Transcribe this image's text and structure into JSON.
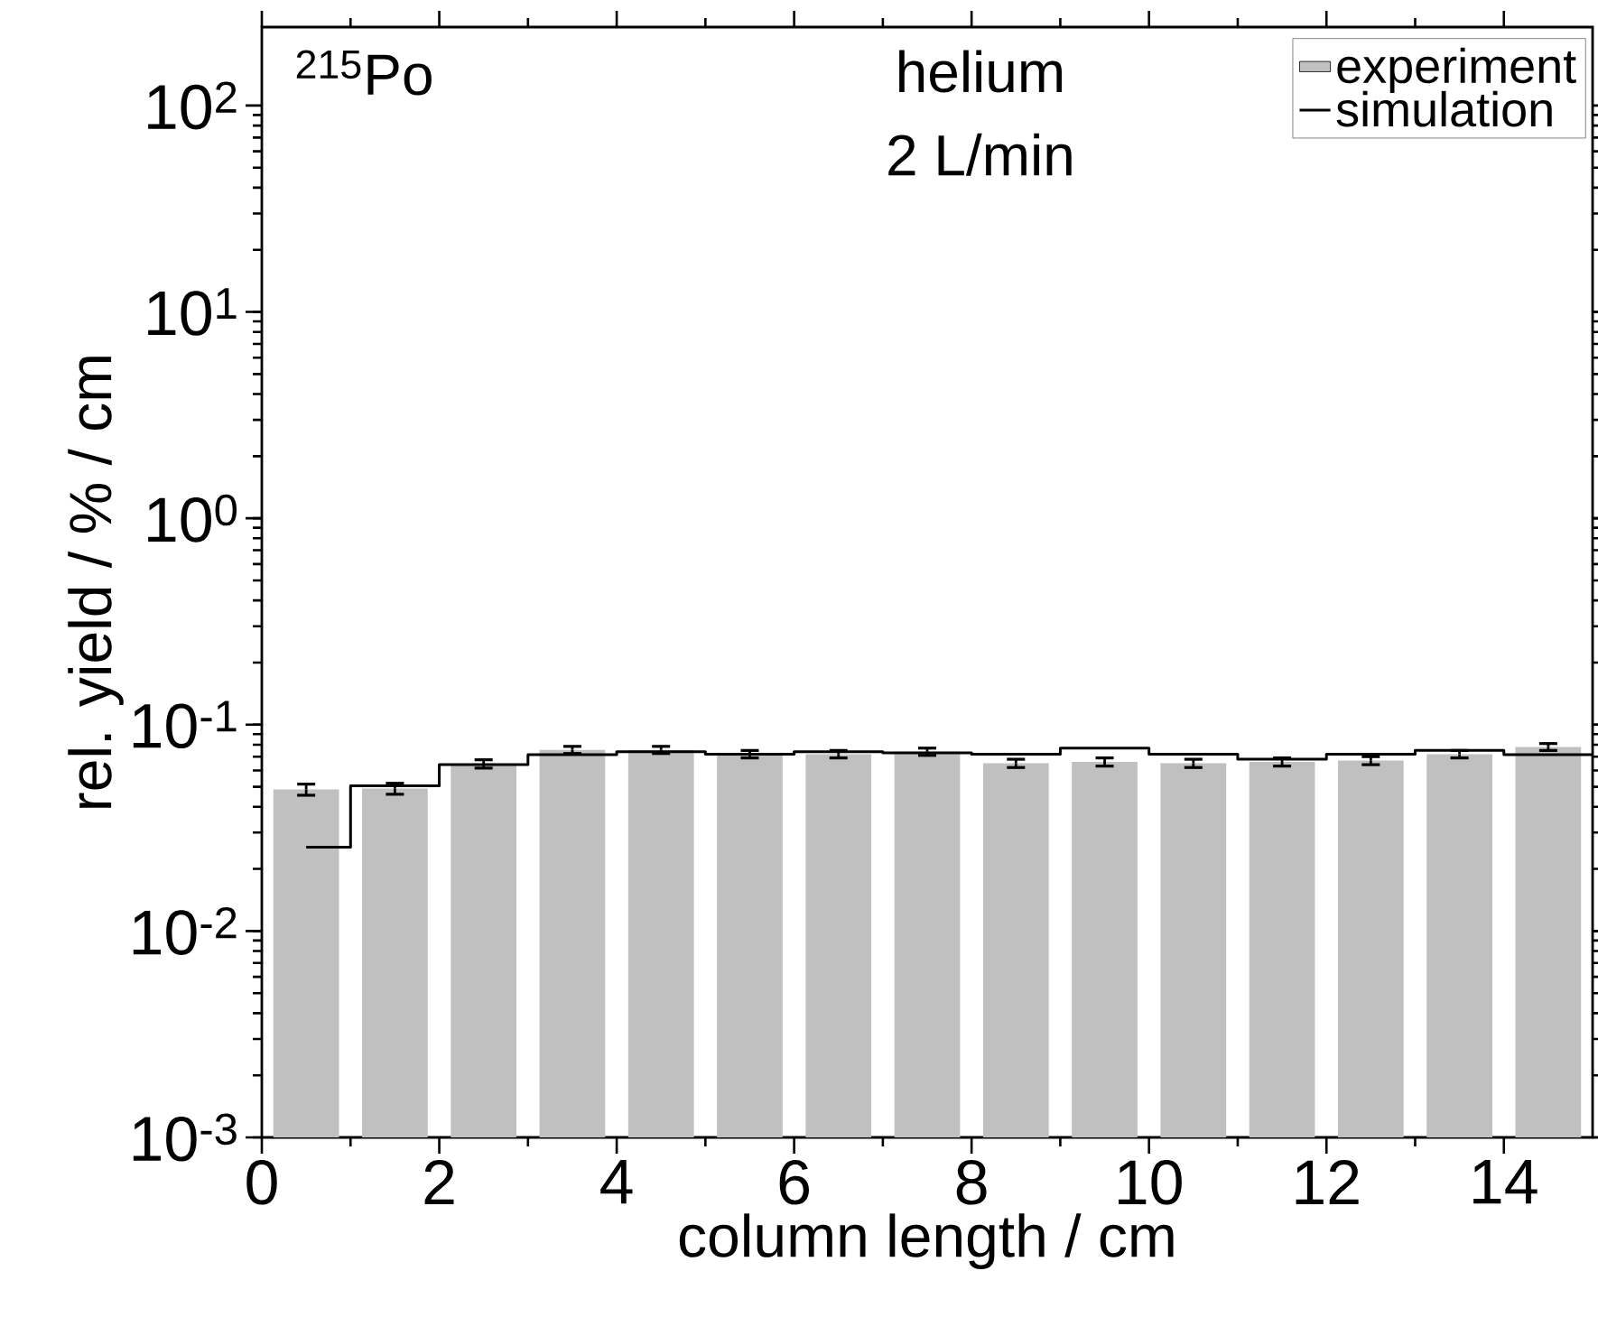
{
  "chart_data": {
    "type": "bar",
    "xlabel": "column length / cm",
    "ylabel": "rel. yield / % / cm",
    "annotations": [
      "$^{215}$Po",
      "helium",
      "2 L/min"
    ],
    "xlim": [
      0,
      15
    ],
    "xticks": [
      0,
      2,
      4,
      6,
      8,
      10,
      12,
      14
    ],
    "ylim": [
      0.001,
      240
    ],
    "yticks": [
      {
        "value": 0.001,
        "label": "10$^{-3}$"
      },
      {
        "value": 0.01,
        "label": "10$^{-2}$"
      },
      {
        "value": 0.1,
        "label": "10$^{-1}$"
      },
      {
        "value": 1,
        "label": "10$^{0}$"
      },
      {
        "value": 10,
        "label": "10$^{1}$"
      },
      {
        "value": 100,
        "label": "10$^{2}$"
      }
    ],
    "log": "y",
    "legend": "top right",
    "series": [
      {
        "name": "experiment",
        "color": "#c0c0c0",
        "x": [
          0.5,
          1.5,
          2.5,
          3.5,
          4.5,
          5.5,
          6.5,
          7.5,
          8.5,
          9.5,
          10.5,
          11.5,
          12.5,
          13.5,
          14.5
        ],
        "values": [
          0.0485,
          0.049,
          0.0646,
          0.0755,
          0.0755,
          0.072,
          0.072,
          0.074,
          0.065,
          0.066,
          0.065,
          0.066,
          0.067,
          0.072,
          0.078
        ],
        "errors": [
          0.003,
          0.003,
          0.003,
          0.003,
          0.003,
          0.003,
          0.003,
          0.003,
          0.003,
          0.003,
          0.003,
          0.003,
          0.003,
          0.003,
          0.003
        ]
      },
      {
        "name": "simulation",
        "type": "step",
        "color": "#000000",
        "x": [
          0.5,
          1,
          2,
          3,
          4,
          5,
          6,
          7,
          8,
          9,
          10,
          11,
          12,
          13,
          14,
          15
        ],
        "values": [
          0.0255,
          0.0505,
          0.064,
          0.0715,
          0.074,
          0.072,
          0.074,
          0.073,
          0.072,
          0.077,
          0.072,
          0.068,
          0.072,
          0.075,
          0.0715,
          0.0715
        ]
      }
    ]
  }
}
